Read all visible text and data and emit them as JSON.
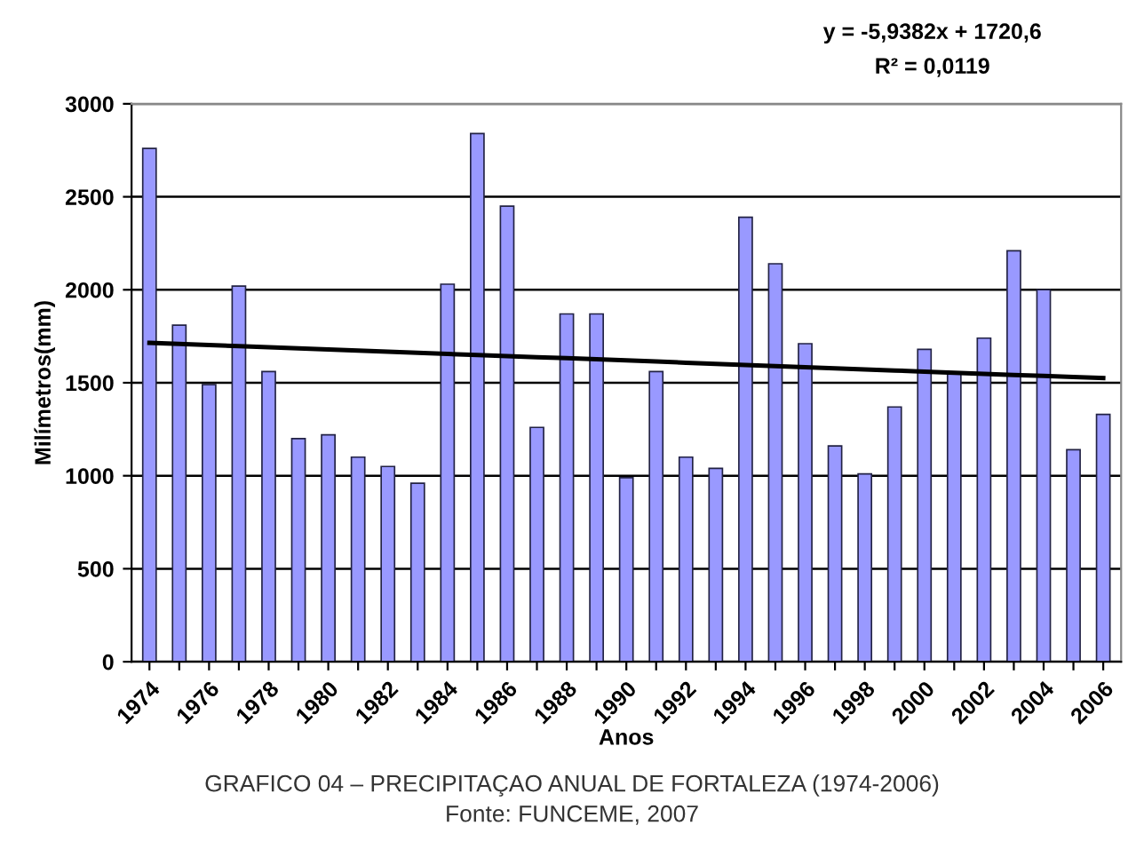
{
  "chart_data": {
    "type": "bar",
    "xlabel": "Anos",
    "ylabel": "Milímetros(mm)",
    "categories": [
      "1974",
      null,
      "1976",
      null,
      "1978",
      null,
      "1980",
      null,
      "1982",
      null,
      "1984",
      null,
      "1986",
      null,
      "1988",
      null,
      "1990",
      null,
      "1992",
      null,
      "1994",
      null,
      "1996",
      null,
      "1998",
      null,
      "2000",
      null,
      "2002",
      null,
      "2004",
      null,
      "2006"
    ],
    "series": [
      {
        "color": "#9999ff",
        "values": [
          2760,
          1810,
          1490,
          2020,
          1560,
          1200,
          1220,
          1100,
          1050,
          960,
          2030,
          2840,
          2450,
          1260,
          1870,
          1870,
          990,
          1560,
          1100,
          1040,
          2390,
          2140,
          1710,
          1160,
          1010,
          1370,
          1680,
          1550,
          1740,
          2210,
          2000,
          1140,
          1330
        ]
      },
      {
        "type": "line",
        "color": "#000000",
        "values": [
          1715,
          1709,
          1703,
          1697,
          1691,
          1685,
          1679,
          1673,
          1667,
          1661,
          1655,
          1649,
          1643,
          1637,
          1632,
          1626,
          1620,
          1614,
          1608,
          1602,
          1596,
          1590,
          1584,
          1578,
          1572,
          1566,
          1560,
          1554,
          1548,
          1542,
          1537,
          1531,
          1525
        ]
      }
    ],
    "ylim": [
      0,
      3000
    ],
    "yticks": [
      0,
      500,
      1000,
      1500,
      2000,
      2500,
      3000
    ],
    "grid": "y",
    "legend": false,
    "annotations": [
      "y = -5,9382x + 1720,6",
      "R² = 0,0119",
      "GRAFICO 04 – PRECIPITAÇAO ANUAL DE FORTALEZA (1974-2006)",
      "Fonte: FUNCEME, 2007"
    ]
  }
}
